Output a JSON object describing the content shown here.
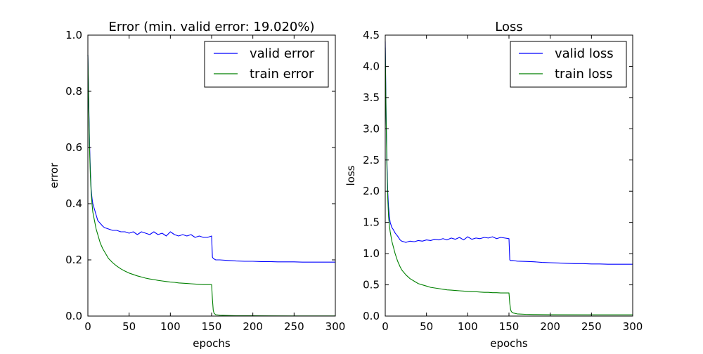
{
  "colors": {
    "valid": "#0000ff",
    "train": "#008000",
    "frame": "#000000",
    "background": "#ffffff"
  },
  "chart_data": [
    {
      "type": "line",
      "title": "Error (min. valid error: 19.020%)",
      "xlabel": "epochs",
      "ylabel": "error",
      "xlim": [
        0,
        300
      ],
      "ylim": [
        0.0,
        1.0
      ],
      "xticks": [
        0,
        50,
        100,
        150,
        200,
        250,
        300
      ],
      "yticks": [
        0.0,
        0.2,
        0.4,
        0.6,
        0.8,
        1.0
      ],
      "xtick_labels": [
        "0",
        "50",
        "100",
        "150",
        "200",
        "250",
        "300"
      ],
      "ytick_labels": [
        "0.0",
        "0.2",
        "0.4",
        "0.6",
        "0.8",
        "1.0"
      ],
      "grid": false,
      "legend_position": "top-right",
      "series": [
        {
          "name": "valid error",
          "color": "#0000ff",
          "x": [
            0,
            1,
            2,
            3,
            4,
            5,
            6,
            8,
            10,
            12,
            15,
            18,
            20,
            25,
            30,
            35,
            40,
            45,
            50,
            55,
            60,
            65,
            70,
            75,
            80,
            85,
            90,
            95,
            100,
            105,
            110,
            115,
            120,
            125,
            130,
            135,
            140,
            145,
            150,
            151,
            152,
            155,
            160,
            170,
            180,
            190,
            200,
            210,
            220,
            230,
            240,
            250,
            260,
            270,
            280,
            290,
            300
          ],
          "y": [
            0.93,
            0.77,
            0.62,
            0.52,
            0.45,
            0.42,
            0.4,
            0.38,
            0.36,
            0.34,
            0.33,
            0.32,
            0.315,
            0.31,
            0.305,
            0.305,
            0.3,
            0.3,
            0.295,
            0.3,
            0.29,
            0.3,
            0.295,
            0.29,
            0.3,
            0.29,
            0.295,
            0.285,
            0.3,
            0.29,
            0.285,
            0.29,
            0.285,
            0.29,
            0.28,
            0.285,
            0.28,
            0.28,
            0.285,
            0.21,
            0.205,
            0.2,
            0.2,
            0.198,
            0.196,
            0.195,
            0.195,
            0.194,
            0.194,
            0.193,
            0.193,
            0.193,
            0.192,
            0.192,
            0.192,
            0.192,
            0.192
          ]
        },
        {
          "name": "train error",
          "color": "#008000",
          "x": [
            0,
            1,
            2,
            3,
            4,
            5,
            6,
            8,
            10,
            12,
            15,
            18,
            20,
            25,
            30,
            35,
            40,
            45,
            50,
            55,
            60,
            65,
            70,
            75,
            80,
            85,
            90,
            95,
            100,
            105,
            110,
            115,
            120,
            125,
            130,
            135,
            140,
            145,
            150,
            151,
            152,
            153,
            155,
            160,
            170,
            180,
            200,
            250,
            300
          ],
          "y": [
            0.93,
            0.75,
            0.6,
            0.5,
            0.44,
            0.4,
            0.37,
            0.34,
            0.31,
            0.29,
            0.26,
            0.24,
            0.23,
            0.205,
            0.19,
            0.178,
            0.168,
            0.16,
            0.153,
            0.148,
            0.143,
            0.139,
            0.135,
            0.132,
            0.13,
            0.127,
            0.125,
            0.123,
            0.121,
            0.12,
            0.118,
            0.117,
            0.116,
            0.115,
            0.114,
            0.113,
            0.112,
            0.112,
            0.112,
            0.06,
            0.02,
            0.01,
            0.005,
            0.003,
            0.002,
            0.001,
            0.001,
            0.0005,
            0.0005
          ]
        }
      ]
    },
    {
      "type": "line",
      "title": "Loss",
      "xlabel": "epochs",
      "ylabel": "loss",
      "xlim": [
        0,
        300
      ],
      "ylim": [
        0.0,
        4.5
      ],
      "xticks": [
        0,
        50,
        100,
        150,
        200,
        250,
        300
      ],
      "yticks": [
        0.0,
        0.5,
        1.0,
        1.5,
        2.0,
        2.5,
        3.0,
        3.5,
        4.0,
        4.5
      ],
      "xtick_labels": [
        "0",
        "50",
        "100",
        "150",
        "200",
        "250",
        "300"
      ],
      "ytick_labels": [
        "0.0",
        "0.5",
        "1.0",
        "1.5",
        "2.0",
        "2.5",
        "3.0",
        "3.5",
        "4.0",
        "4.5"
      ],
      "grid": false,
      "legend_position": "top-right",
      "series": [
        {
          "name": "valid loss",
          "color": "#0000ff",
          "x": [
            0,
            1,
            2,
            3,
            4,
            5,
            6,
            8,
            10,
            12,
            15,
            18,
            20,
            25,
            30,
            35,
            40,
            45,
            50,
            55,
            60,
            65,
            70,
            75,
            80,
            85,
            90,
            95,
            100,
            105,
            110,
            115,
            120,
            125,
            130,
            135,
            140,
            145,
            150,
            151,
            152,
            155,
            160,
            170,
            180,
            190,
            200,
            210,
            220,
            230,
            240,
            250,
            260,
            270,
            280,
            290,
            300
          ],
          "y": [
            4.4,
            3.3,
            2.5,
            2.0,
            1.75,
            1.6,
            1.5,
            1.42,
            1.38,
            1.33,
            1.28,
            1.22,
            1.2,
            1.18,
            1.2,
            1.19,
            1.21,
            1.2,
            1.22,
            1.21,
            1.23,
            1.22,
            1.24,
            1.22,
            1.25,
            1.23,
            1.26,
            1.22,
            1.27,
            1.23,
            1.25,
            1.24,
            1.26,
            1.25,
            1.27,
            1.24,
            1.26,
            1.25,
            1.24,
            0.9,
            0.89,
            0.89,
            0.88,
            0.875,
            0.87,
            0.86,
            0.855,
            0.85,
            0.845,
            0.84,
            0.84,
            0.835,
            0.835,
            0.83,
            0.83,
            0.83,
            0.83
          ]
        },
        {
          "name": "train loss",
          "color": "#008000",
          "x": [
            0,
            1,
            2,
            3,
            4,
            5,
            6,
            8,
            10,
            12,
            15,
            18,
            20,
            25,
            30,
            35,
            40,
            45,
            50,
            55,
            60,
            65,
            70,
            75,
            80,
            85,
            90,
            95,
            100,
            105,
            110,
            115,
            120,
            125,
            130,
            135,
            140,
            145,
            150,
            151,
            152,
            153,
            155,
            160,
            170,
            180,
            200,
            250,
            300
          ],
          "y": [
            4.3,
            3.2,
            2.4,
            1.9,
            1.6,
            1.45,
            1.35,
            1.2,
            1.1,
            1.0,
            0.88,
            0.79,
            0.74,
            0.66,
            0.6,
            0.56,
            0.52,
            0.5,
            0.48,
            0.46,
            0.45,
            0.44,
            0.43,
            0.42,
            0.415,
            0.41,
            0.405,
            0.4,
            0.395,
            0.39,
            0.39,
            0.385,
            0.38,
            0.38,
            0.375,
            0.375,
            0.37,
            0.37,
            0.37,
            0.2,
            0.1,
            0.07,
            0.05,
            0.035,
            0.028,
            0.025,
            0.022,
            0.02,
            0.02
          ]
        }
      ]
    }
  ]
}
